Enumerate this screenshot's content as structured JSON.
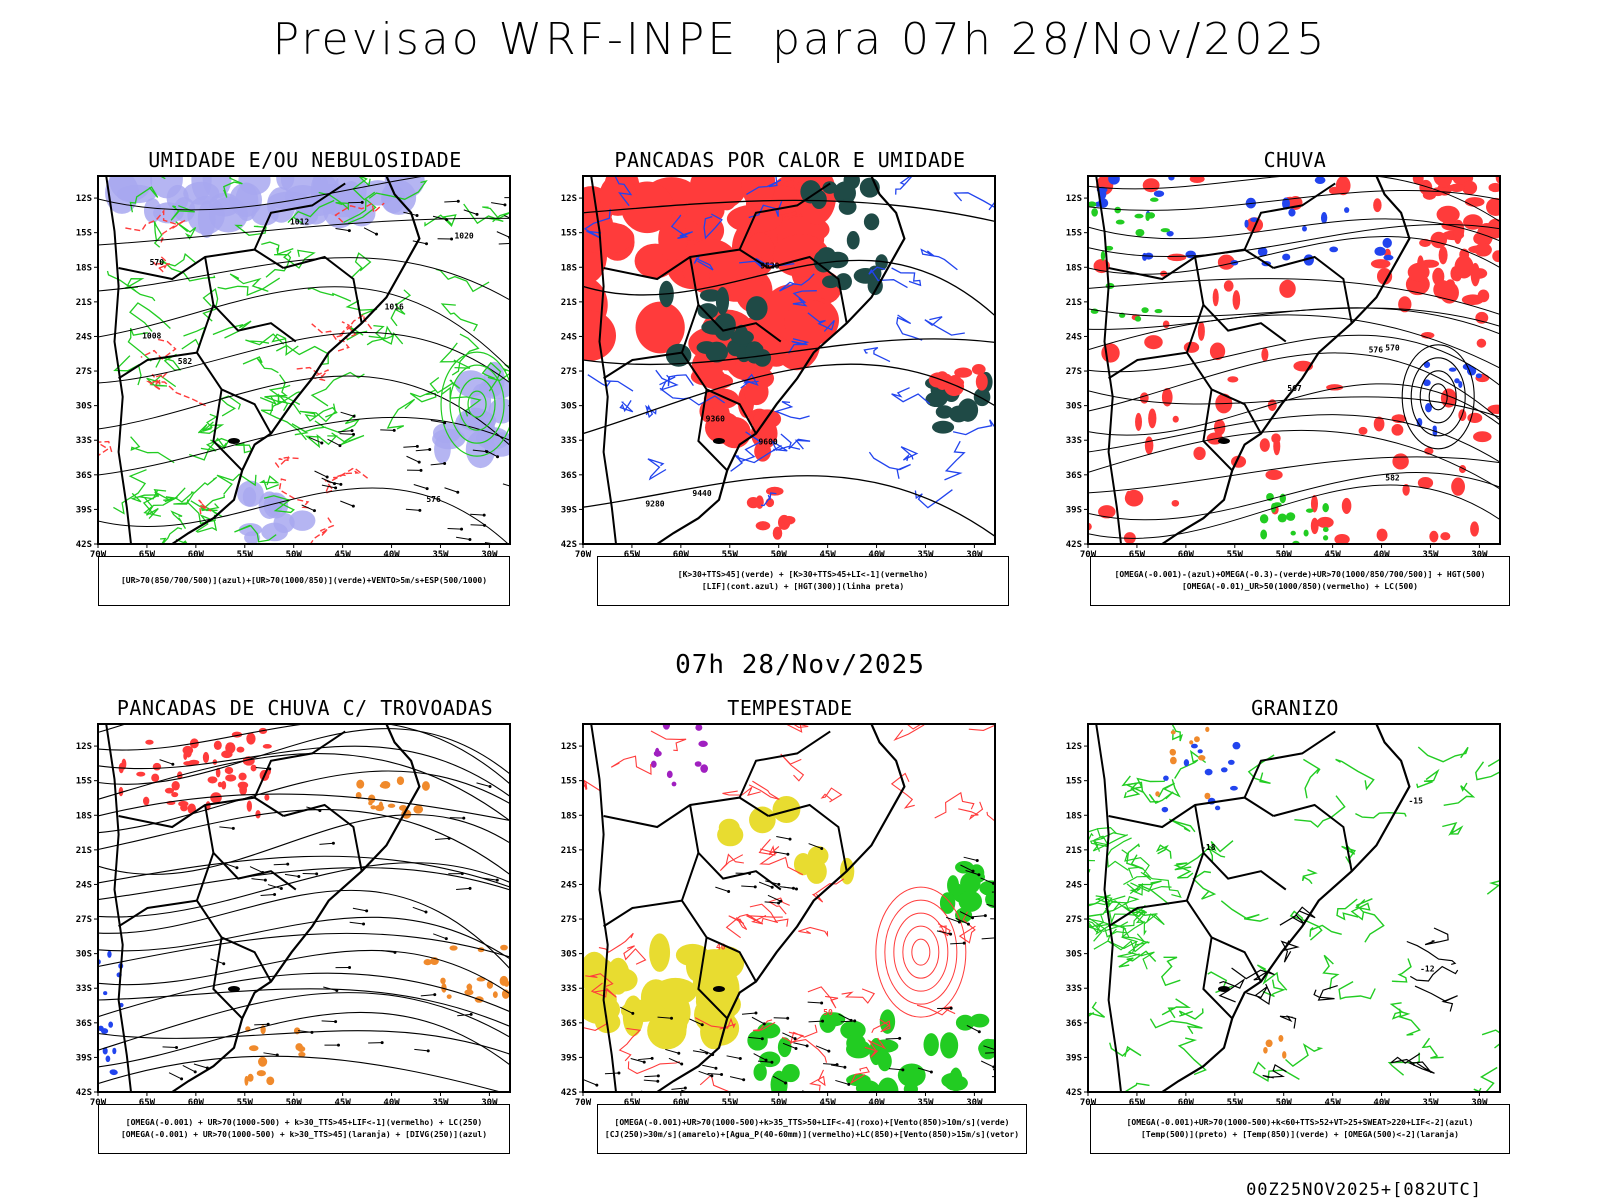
{
  "header": {
    "title": "Previsao WRF-INPE  para 07h 28/Nov/2025"
  },
  "mid": {
    "subtitle": "07h 28/Nov/2025"
  },
  "footer": {
    "run": "00Z25NOV2025+[082UTC]"
  },
  "axes": {
    "lat_labels": [
      "12S",
      "15S",
      "18S",
      "21S",
      "24S",
      "27S",
      "30S",
      "33S",
      "36S",
      "39S",
      "42S"
    ],
    "lon_labels": [
      "70W",
      "65W",
      "60W",
      "55W",
      "50W",
      "45W",
      "40W",
      "35W",
      "30W"
    ]
  },
  "colors": {
    "red": "#ff3b3b",
    "green": "#22cc22",
    "blue": "#2244ee",
    "lavender": "#a8a8f0",
    "darkgreen": "#1f4a46",
    "yellow": "#e8dc30",
    "orange": "#f08a2c",
    "purple": "#a020c0"
  },
  "panels": [
    {
      "title": "UMIDADE E/OU NEBULOSIDADE",
      "legend": [
        "[UR>70(850/700/500)](azul)+[UR>70(1000/850)](verde)+VENTO>5m/s+ESP(500/1000)"
      ],
      "contour_labels": [
        "1008",
        "1012",
        "1016",
        "1020",
        "570",
        "576",
        "582"
      ]
    },
    {
      "title": "PANCADAS POR CALOR E UMIDADE",
      "legend": [
        "[K>30+TTS>45](verde) + [K>30+TTS>45+LI<-1](vermelho)",
        "[LIF](cont.azul) + [HGT(300)](linha preta)"
      ],
      "contour_labels": [
        "9600",
        "9520",
        "9440",
        "9360",
        "9280"
      ]
    },
    {
      "title": "CHUVA",
      "legend": [
        "[OMEGA(-0.001)-(azul)+OMEGA(-0.3)-(verde)+UR>70(1000/850/700/500)] + HGT(500)",
        "[OMEGA(-0.01)_UR>50(1000/850)(vermelho) + LC(500)"
      ],
      "contour_labels": [
        "576",
        "582",
        "570",
        "567"
      ]
    },
    {
      "title": "PANCADAS DE CHUVA C/ TROVOADAS",
      "legend": [
        "[OMEGA(-0.001) + UR>70(1000-500) + k>30_TTS>45+LIF<-1](vermelho) + LC(250)",
        "[OMEGA(-0.001) + UR>70(1000-500) + k>30_TTS>45](laranja) + [DIVG(250)](azul)"
      ],
      "contour_labels": []
    },
    {
      "title": "TEMPESTADE",
      "legend": [
        "[OMEGA(-0.001)+UR>70(1000-500)+k>35_TTS>50+LIF<-4](roxo)+[Vento(850)>10m/s](verde)",
        "[CJ(250)>30m/s](amarelo)+[Agua_P(40-60mm)](vermelho)+LC(850)+[Vento(850)>15m/s](vetor)"
      ],
      "contour_labels": [
        "50",
        "40"
      ]
    },
    {
      "title": "GRANIZO",
      "legend": [
        "[OMEGA(-0.001)+UR>70(1000-500)+k<60+TTS>52+VT>25+SWEAT>220+LIF<-2](azul)",
        "[Temp(500)](preto) + [Temp(850)](verde) + [OMEGA(500)<-2](laranja)"
      ],
      "contour_labels": [
        "-12",
        "-15",
        "-18"
      ]
    }
  ]
}
